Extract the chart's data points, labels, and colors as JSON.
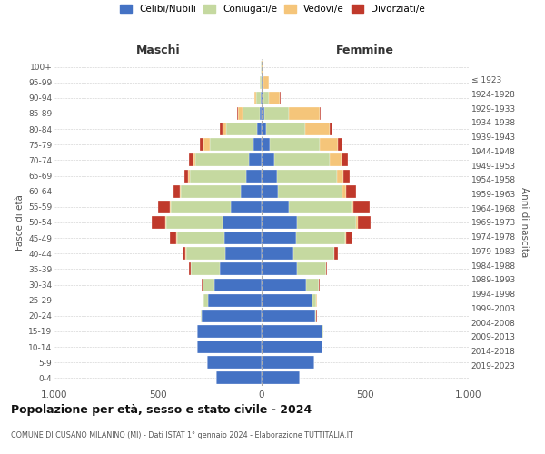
{
  "age_groups": [
    "0-4",
    "5-9",
    "10-14",
    "15-19",
    "20-24",
    "25-29",
    "30-34",
    "35-39",
    "40-44",
    "45-49",
    "50-54",
    "55-59",
    "60-64",
    "65-69",
    "70-74",
    "75-79",
    "80-84",
    "85-89",
    "90-94",
    "95-99",
    "100+"
  ],
  "birth_years": [
    "2019-2023",
    "2014-2018",
    "2009-2013",
    "2004-2008",
    "1999-2003",
    "1994-1998",
    "1989-1993",
    "1984-1988",
    "1979-1983",
    "1974-1978",
    "1969-1973",
    "1964-1968",
    "1959-1963",
    "1954-1958",
    "1949-1953",
    "1944-1948",
    "1939-1943",
    "1934-1938",
    "1929-1933",
    "1924-1928",
    "≤ 1923"
  ],
  "males": {
    "celibe": [
      220,
      265,
      310,
      310,
      290,
      260,
      230,
      200,
      175,
      180,
      190,
      150,
      100,
      75,
      60,
      40,
      20,
      10,
      5,
      2,
      2
    ],
    "coniugato": [
      0,
      0,
      1,
      2,
      5,
      20,
      55,
      140,
      190,
      230,
      270,
      290,
      290,
      270,
      260,
      210,
      150,
      80,
      20,
      5,
      1
    ],
    "vedovo": [
      0,
      0,
      0,
      0,
      0,
      1,
      1,
      1,
      2,
      3,
      5,
      5,
      5,
      10,
      10,
      30,
      20,
      25,
      10,
      2,
      0
    ],
    "divorziato": [
      0,
      0,
      0,
      0,
      1,
      3,
      5,
      10,
      15,
      30,
      65,
      55,
      30,
      20,
      20,
      20,
      10,
      5,
      2,
      0,
      0
    ]
  },
  "females": {
    "nubile": [
      185,
      255,
      295,
      295,
      260,
      245,
      215,
      170,
      155,
      165,
      170,
      130,
      80,
      75,
      60,
      40,
      20,
      12,
      8,
      3,
      2
    ],
    "coniugata": [
      0,
      0,
      1,
      2,
      5,
      20,
      60,
      140,
      195,
      240,
      285,
      305,
      310,
      290,
      270,
      240,
      190,
      120,
      25,
      5,
      0
    ],
    "vedova": [
      0,
      0,
      0,
      0,
      0,
      1,
      1,
      1,
      3,
      5,
      8,
      10,
      20,
      30,
      55,
      90,
      120,
      150,
      55,
      25,
      5
    ],
    "divorziata": [
      0,
      0,
      0,
      0,
      1,
      3,
      5,
      5,
      15,
      30,
      65,
      75,
      45,
      30,
      30,
      20,
      10,
      5,
      2,
      0,
      0
    ]
  },
  "colors": {
    "celibe": "#4472C4",
    "coniugato": "#C5D9A0",
    "vedovo": "#F5C57A",
    "divorziato": "#C0392B"
  },
  "xlim": 1000,
  "title": "Popolazione per età, sesso e stato civile - 2024",
  "subtitle": "COMUNE DI CUSANO MILANINO (MI) - Dati ISTAT 1° gennaio 2024 - Elaborazione TUTTITALIA.IT",
  "ylabel": "Fasce di età",
  "ylabel_right": "Anni di nascita",
  "xlabel_left": "Maschi",
  "xlabel_right": "Femmine",
  "legend_labels": [
    "Celibi/Nubili",
    "Coniugati/e",
    "Vedovi/e",
    "Divorziati/e"
  ],
  "legend_colors": [
    "#4472C4",
    "#C5D9A0",
    "#F5C57A",
    "#C0392B"
  ]
}
